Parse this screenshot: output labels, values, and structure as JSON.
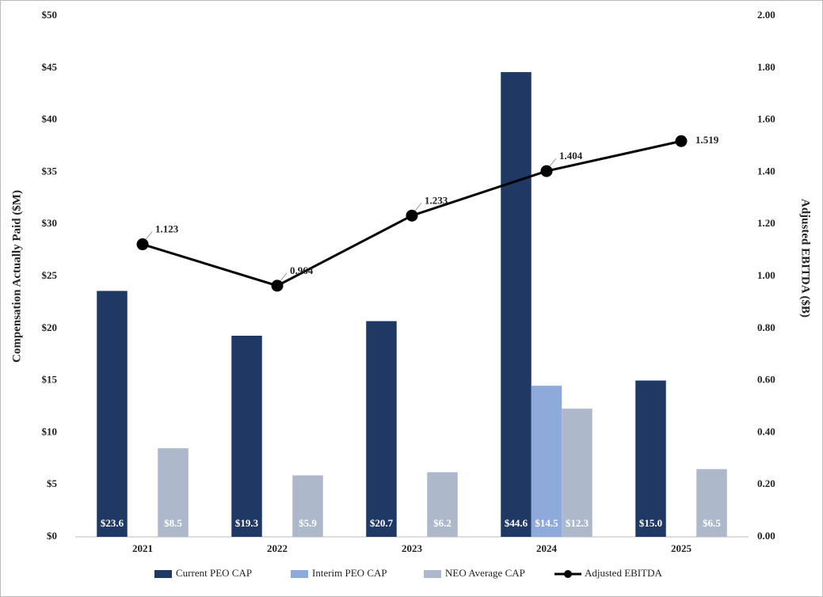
{
  "chart_data": {
    "type": "bar",
    "categories": [
      "2021",
      "2022",
      "2023",
      "2024",
      "2025"
    ],
    "y_label": "Compensation Actually Paid ($M)",
    "y2_label": "Adjusted EBITDA ($B)",
    "ylim": [
      0,
      50
    ],
    "yticks": [
      {
        "value": 0,
        "label": "$0"
      },
      {
        "value": 5,
        "label": "$5"
      },
      {
        "value": 10,
        "label": "$10"
      },
      {
        "value": 15,
        "label": "$15"
      },
      {
        "value": 20,
        "label": "$20"
      },
      {
        "value": 25,
        "label": "$25"
      },
      {
        "value": 30,
        "label": "$30"
      },
      {
        "value": 35,
        "label": "$35"
      },
      {
        "value": 40,
        "label": "$40"
      },
      {
        "value": 45,
        "label": "$45"
      },
      {
        "value": 50,
        "label": "$50"
      }
    ],
    "y2lim": [
      0,
      2
    ],
    "y2ticks": [
      {
        "value": 0,
        "label": "0.00"
      },
      {
        "value": 0.2,
        "label": "0.20"
      },
      {
        "value": 0.4,
        "label": "0.40"
      },
      {
        "value": 0.6,
        "label": "0.60"
      },
      {
        "value": 0.8,
        "label": "0.80"
      },
      {
        "value": 1,
        "label": "1.00"
      },
      {
        "value": 1.2,
        "label": "1.20"
      },
      {
        "value": 1.4,
        "label": "1.40"
      },
      {
        "value": 1.6,
        "label": "1.60"
      },
      {
        "value": 1.8,
        "label": "1.80"
      },
      {
        "value": 2,
        "label": "2.00"
      }
    ],
    "series": [
      {
        "name": "Current PEO CAP",
        "type": "bar",
        "color": "#1f3864",
        "values": [
          23.6,
          19.3,
          20.7,
          44.6,
          15.0
        ],
        "value_labels": [
          "$23.6",
          "$19.3",
          "$20.7",
          "$44.6",
          "$15.0"
        ]
      },
      {
        "name": "Interim PEO CAP",
        "type": "bar",
        "color": "#8eaadb",
        "values": [
          null,
          null,
          null,
          14.5,
          null
        ],
        "value_labels": [
          null,
          null,
          null,
          "$14.5",
          null
        ]
      },
      {
        "name": "NEO Average CAP",
        "type": "bar",
        "color": "#adb9ca",
        "values": [
          8.5,
          5.9,
          6.2,
          12.3,
          6.5
        ],
        "value_labels": [
          "$8.5",
          "$5.9",
          "$6.2",
          "$12.3",
          "$6.5"
        ]
      },
      {
        "name": "Adjusted EBITDA",
        "type": "line",
        "axis": "y2",
        "color": "#000000",
        "values": [
          1.123,
          0.964,
          1.233,
          1.404,
          1.519
        ]
      }
    ]
  }
}
